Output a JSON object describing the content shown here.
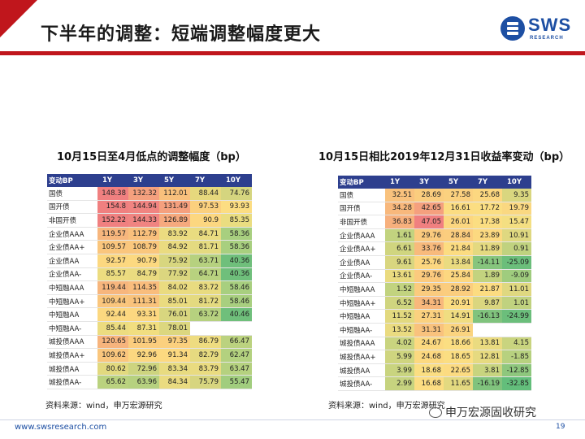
{
  "title": "下半年的调整：短端调整幅度更大",
  "logo": {
    "text": "SWS",
    "sub": "RESEARCH"
  },
  "left_table": {
    "title": "10月15日至4月低点的调整幅度（bp）",
    "headers": [
      "变动BP",
      "1Y",
      "3Y",
      "5Y",
      "7Y",
      "10Y"
    ],
    "rows": [
      {
        "label": "国债",
        "values": [
          "148.38",
          "132.32",
          "112.01",
          "88.44",
          "74.76"
        ],
        "colors": [
          "#f08080",
          "#f5a07e",
          "#f9c07c",
          "#e6d87d",
          "#d5d57f"
        ]
      },
      {
        "label": "国开债",
        "values": [
          "154.8",
          "144.94",
          "131.49",
          "97.53",
          "93.93"
        ],
        "colors": [
          "#f08080",
          "#f08481",
          "#f5a07e",
          "#fbd07e",
          "#fcdd82"
        ]
      },
      {
        "label": "非国开债",
        "values": [
          "152.22",
          "144.33",
          "126.89",
          "90.9",
          "85.35"
        ],
        "colors": [
          "#f08080",
          "#f08481",
          "#f6a97e",
          "#fcd780",
          "#eadd80"
        ]
      },
      {
        "label": "企业债AAA",
        "values": [
          "119.57",
          "112.79",
          "83.92",
          "84.71",
          "58.36"
        ],
        "colors": [
          "#f7b67d",
          "#f9c07c",
          "#ebdb80",
          "#e9dc80",
          "#a8cf7f"
        ]
      },
      {
        "label": "企业债AA+",
        "values": [
          "109.57",
          "108.79",
          "84.92",
          "81.71",
          "58.36"
        ],
        "colors": [
          "#fac67d",
          "#fac77d",
          "#eadb80",
          "#e4da80",
          "#a8cf7f"
        ]
      },
      {
        "label": "企业债AA",
        "values": [
          "92.57",
          "90.79",
          "75.92",
          "63.71",
          "40.36"
        ],
        "colors": [
          "#fcd880",
          "#fcd980",
          "#d8d67f",
          "#b6d17f",
          "#6fbf7b"
        ]
      },
      {
        "label": "企业债AA-",
        "values": [
          "85.57",
          "84.79",
          "77.92",
          "64.71",
          "40.36"
        ],
        "colors": [
          "#ecdc80",
          "#eadb80",
          "#dbd67f",
          "#b8d27f",
          "#6fbf7b"
        ]
      },
      {
        "label": "中短融AAA",
        "values": [
          "119.44",
          "114.35",
          "84.02",
          "83.72",
          "58.46"
        ],
        "colors": [
          "#f7b67d",
          "#f9bd7d",
          "#eadb80",
          "#e8db80",
          "#a8cf7f"
        ]
      },
      {
        "label": "中短融AA+",
        "values": [
          "109.44",
          "111.31",
          "85.01",
          "81.72",
          "58.46"
        ],
        "colors": [
          "#fac67d",
          "#f9c37c",
          "#eadb80",
          "#e4da80",
          "#a8cf7f"
        ]
      },
      {
        "label": "中短融AA",
        "values": [
          "92.44",
          "93.31",
          "76.01",
          "63.72",
          "40.46"
        ],
        "colors": [
          "#fcd880",
          "#fcd780",
          "#d8d67f",
          "#b6d17f",
          "#6fbf7b"
        ]
      },
      {
        "label": "中短融AA-",
        "values": [
          "85.44",
          "87.31",
          "78.01",
          "",
          ""
        ],
        "colors": [
          "#ecdc80",
          "#f1de80",
          "#dcd77f",
          "#ffffff",
          "#ffffff"
        ]
      },
      {
        "label": "城投债AAA",
        "values": [
          "120.65",
          "101.95",
          "97.35",
          "86.79",
          "66.47"
        ],
        "colors": [
          "#f7b47d",
          "#fbcd7e",
          "#fbd07e",
          "#eedc80",
          "#bbd27f"
        ]
      },
      {
        "label": "城投债AA+",
        "values": [
          "109.62",
          "92.96",
          "91.34",
          "82.79",
          "62.47"
        ],
        "colors": [
          "#fac67d",
          "#fcd780",
          "#fcd980",
          "#e6da80",
          "#b3d17f"
        ]
      },
      {
        "label": "城投债AA",
        "values": [
          "80.62",
          "72.96",
          "83.34",
          "83.79",
          "63.47"
        ],
        "colors": [
          "#e2d97f",
          "#cdd47f",
          "#e8db80",
          "#e9db80",
          "#b5d17f"
        ]
      },
      {
        "label": "城投债AA-",
        "values": [
          "65.62",
          "63.96",
          "84.34",
          "75.79",
          "55.47"
        ],
        "colors": [
          "#bad27f",
          "#b6d17f",
          "#eadb80",
          "#d7d57f",
          "#a1cd7e"
        ]
      }
    ]
  },
  "right_table": {
    "title": "10月15日相比2019年12月31日收益率变动（bp）",
    "headers": [
      "变动BP",
      "1Y",
      "3Y",
      "5Y",
      "7Y",
      "10Y"
    ],
    "rows": [
      {
        "label": "国债",
        "values": [
          "32.51",
          "28.69",
          "27.58",
          "25.68",
          "9.35"
        ],
        "colors": [
          "#f9c27d",
          "#fbcd7e",
          "#fbd17f",
          "#fcd780",
          "#d9d67f"
        ]
      },
      {
        "label": "国开债",
        "values": [
          "34.28",
          "42.65",
          "16.61",
          "17.72",
          "19.79"
        ],
        "colors": [
          "#f8b87c",
          "#f5a07e",
          "#fcdd82",
          "#fbde82",
          "#fad881"
        ]
      },
      {
        "label": "非国开债",
        "values": [
          "36.83",
          "47.05",
          "26.01",
          "17.38",
          "15.47"
        ],
        "colors": [
          "#f7b07d",
          "#f08080",
          "#fcd780",
          "#fbde82",
          "#f4df82"
        ]
      },
      {
        "label": "企业债AAA",
        "values": [
          "1.61",
          "29.76",
          "28.84",
          "23.89",
          "10.91"
        ],
        "colors": [
          "#c2d37f",
          "#fbca7e",
          "#fbcd7e",
          "#fcd980",
          "#dfd880"
        ]
      },
      {
        "label": "企业债AA+",
        "values": [
          "6.61",
          "33.76",
          "21.84",
          "11.89",
          "0.91"
        ],
        "colors": [
          "#d0d57f",
          "#f8ba7c",
          "#fcdc81",
          "#e4d980",
          "#c0d27f"
        ]
      },
      {
        "label": "企业债AA",
        "values": [
          "9.61",
          "25.76",
          "13.84",
          "-14.11",
          "-25.09"
        ],
        "colors": [
          "#d9d67f",
          "#fcd780",
          "#eadb80",
          "#86c57d",
          "#6bbe7b"
        ]
      },
      {
        "label": "企业债AA-",
        "values": [
          "13.61",
          "29.76",
          "25.84",
          "1.89",
          "-9.09"
        ],
        "colors": [
          "#eadb80",
          "#fbca7e",
          "#fcd780",
          "#c3d37f",
          "#9fcc7e"
        ]
      },
      {
        "label": "中短融AAA",
        "values": [
          "1.52",
          "29.35",
          "28.92",
          "21.87",
          "11.01"
        ],
        "colors": [
          "#c2d37f",
          "#fbcb7e",
          "#fbcd7e",
          "#fcdc81",
          "#dfd880"
        ]
      },
      {
        "label": "中短融AA+",
        "values": [
          "6.52",
          "34.31",
          "20.91",
          "9.87",
          "1.01"
        ],
        "colors": [
          "#d0d57f",
          "#f8b87c",
          "#fcdd82",
          "#dad67f",
          "#c0d27f"
        ]
      },
      {
        "label": "中短融AA",
        "values": [
          "11.52",
          "27.31",
          "14.91",
          "-16.13",
          "-24.99"
        ],
        "colors": [
          "#e2d97f",
          "#fbd17f",
          "#f0dd81",
          "#80c37d",
          "#6bbe7b"
        ]
      },
      {
        "label": "中短融AA-",
        "values": [
          "13.52",
          "31.31",
          "26.91",
          "",
          ""
        ],
        "colors": [
          "#eadb80",
          "#f9c27d",
          "#fbd47f",
          "#ffffff",
          "#ffffff"
        ]
      },
      {
        "label": "城投债AAA",
        "values": [
          "4.02",
          "24.67",
          "18.66",
          "13.81",
          "4.15"
        ],
        "colors": [
          "#c9d47f",
          "#fcd980",
          "#fbde82",
          "#eadb80",
          "#c9d47f"
        ]
      },
      {
        "label": "城投债AA+",
        "values": [
          "5.99",
          "24.68",
          "18.65",
          "12.81",
          "-1.85"
        ],
        "colors": [
          "#cfd57f",
          "#fcd980",
          "#fbde82",
          "#e6da80",
          "#b7d17f"
        ]
      },
      {
        "label": "城投债AA",
        "values": [
          "3.99",
          "18.68",
          "22.65",
          "3.81",
          "-12.85"
        ],
        "colors": [
          "#c9d47f",
          "#fbde82",
          "#fcdb81",
          "#c8d47f",
          "#8ec77d"
        ]
      },
      {
        "label": "城投债AA-",
        "values": [
          "2.99",
          "16.68",
          "11.65",
          "-16.19",
          "-32.85"
        ],
        "colors": [
          "#c6d37f",
          "#fcdd82",
          "#e3d980",
          "#80c37d",
          "#63be7b"
        ]
      }
    ]
  },
  "source_left": "资料来源：wind，申万宏源研究",
  "source_right": "资料来源：wind，申万宏源研究",
  "watermark": "申万宏源固收研究",
  "footer_url": "www.swsresearch.com",
  "page_number": "19"
}
